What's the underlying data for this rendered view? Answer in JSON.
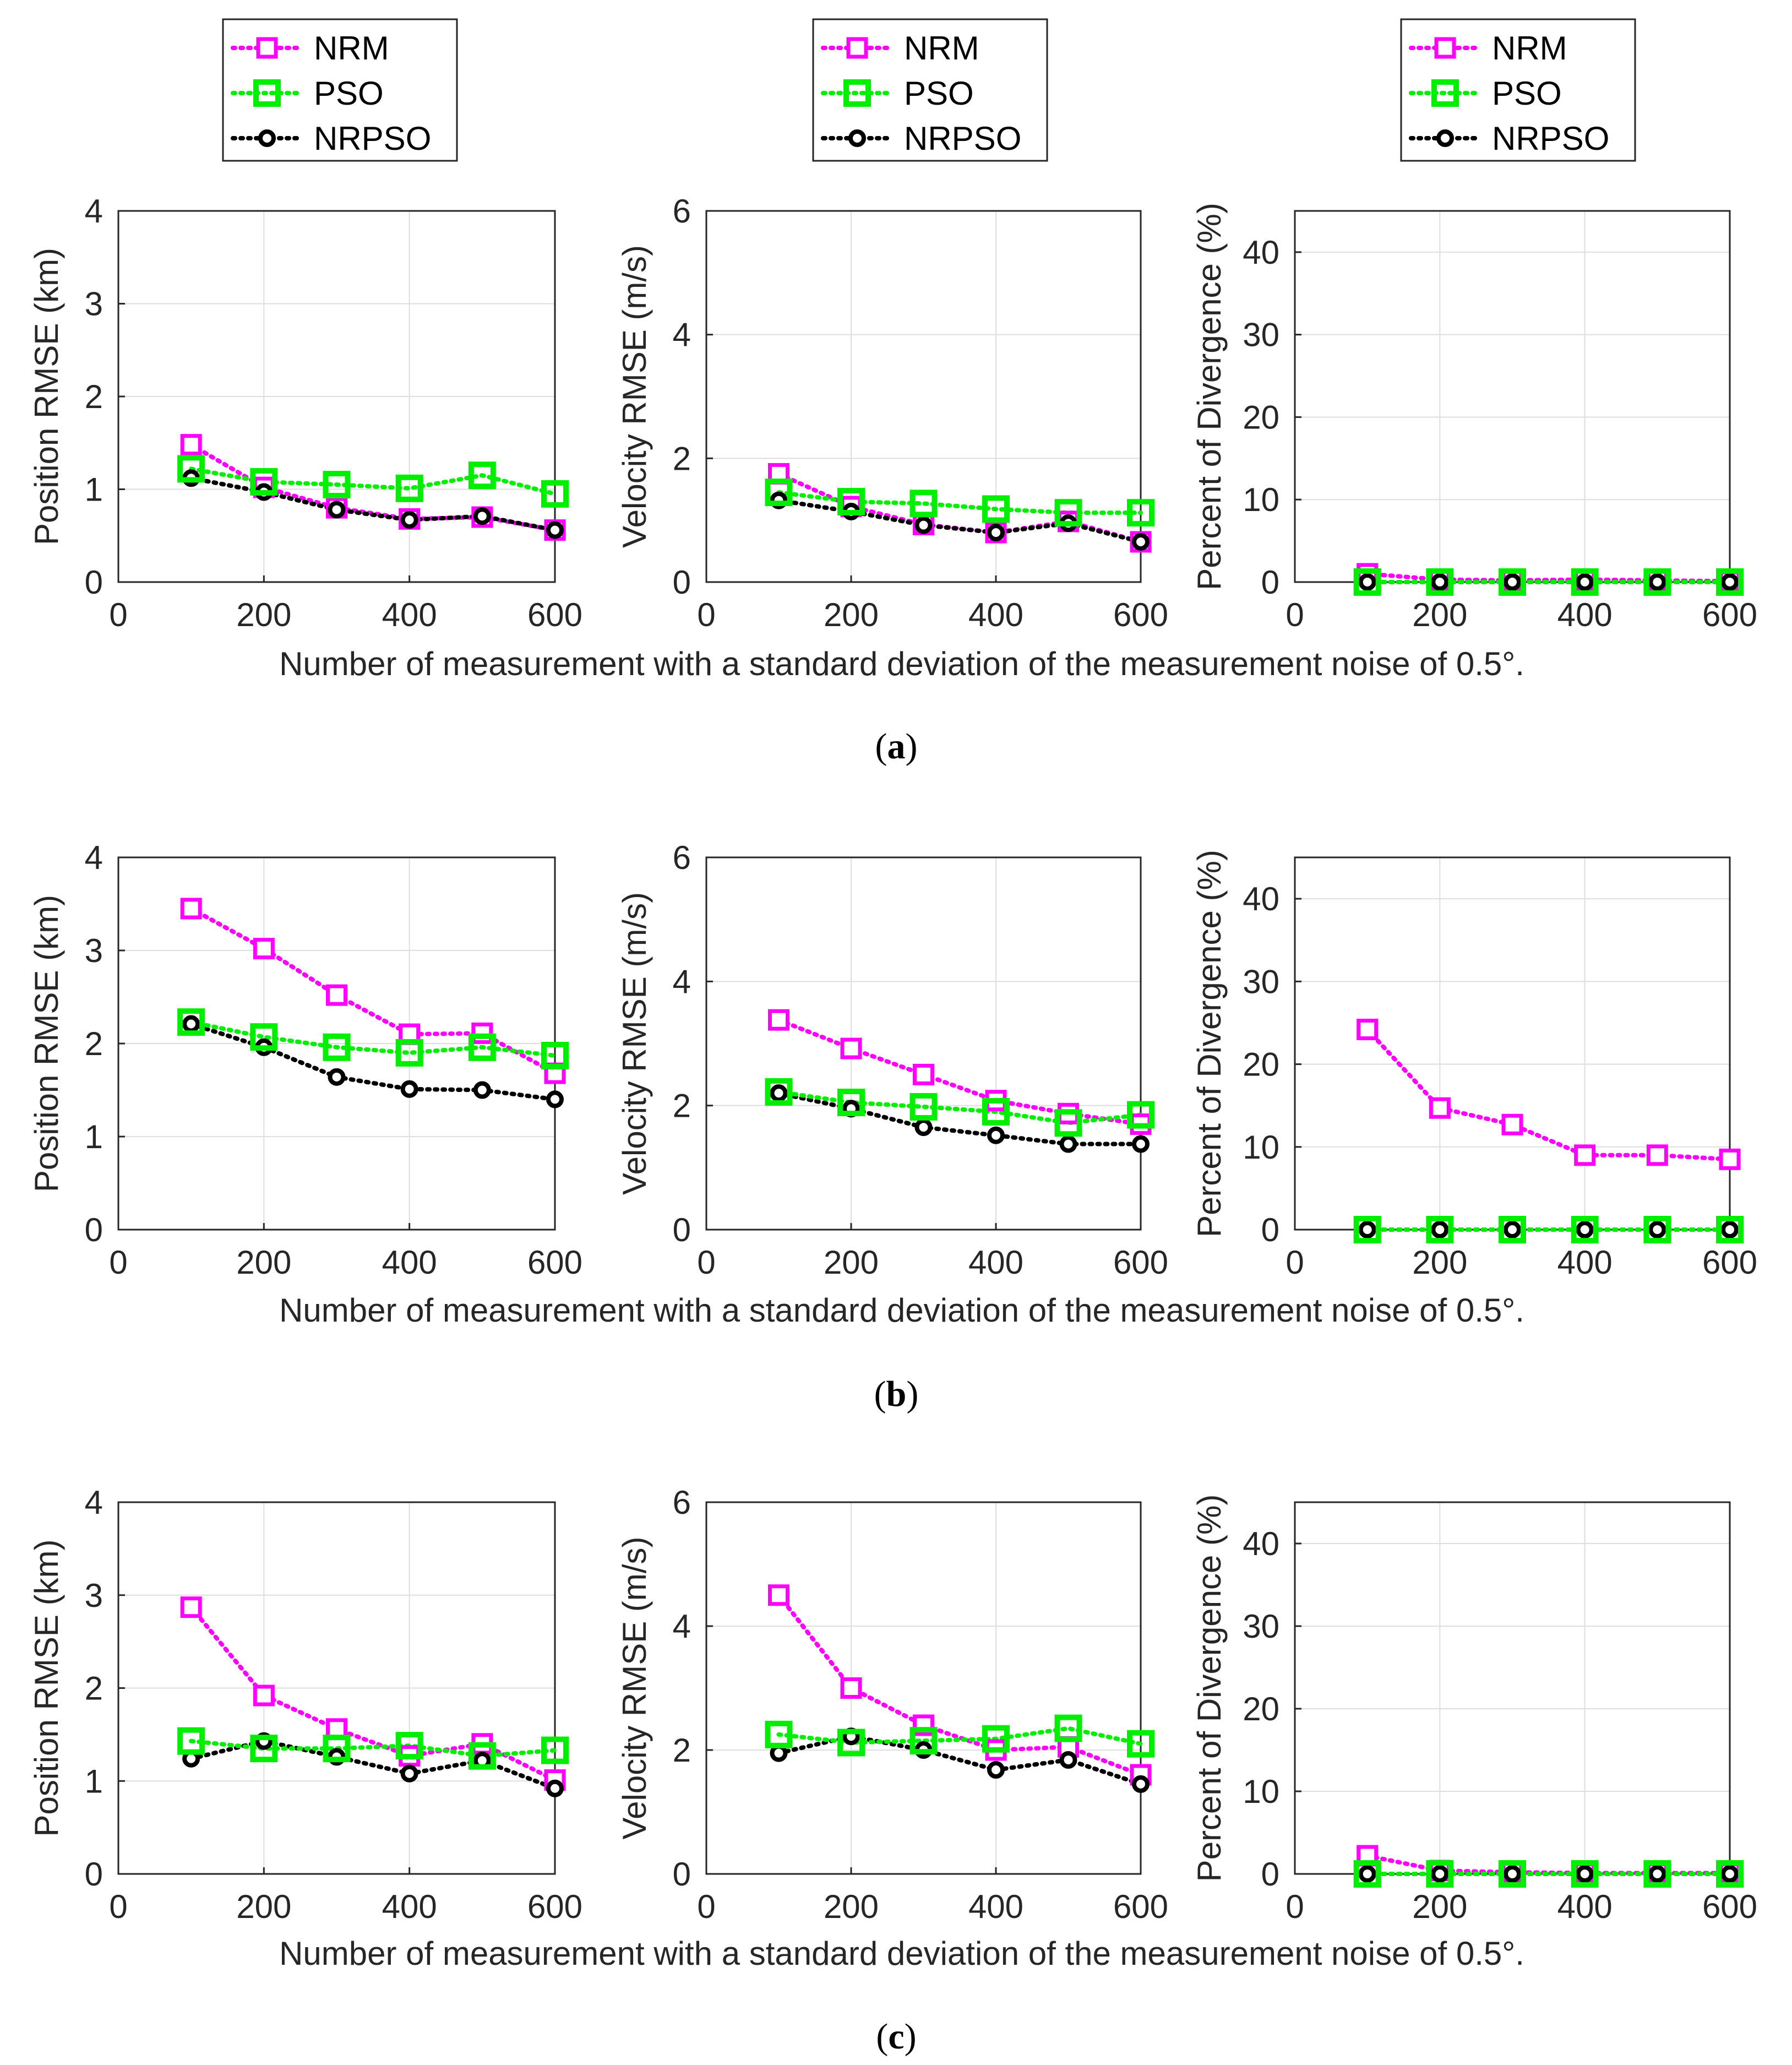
{
  "legend": {
    "entries": [
      {
        "label": "NRM",
        "series": "NRM"
      },
      {
        "label": "PSO",
        "series": "PSO"
      },
      {
        "label": "NRPSO",
        "series": "NRPSO"
      }
    ]
  },
  "colors": {
    "NRM": "#ff00ff",
    "PSO": "#00ee00",
    "NRPSO": "#000000",
    "axis": "#262626",
    "grid": "#dedede"
  },
  "chart_data": [
    {
      "panel": "a",
      "panel_label": "a",
      "type": "line",
      "xlabel": "Number of measurement with a standard deviation of the measurement noise of 0.5°.",
      "charts": [
        {
          "ylabel": "Position RMSE (km)",
          "xlim": [
            0,
            600
          ],
          "ylim": [
            0,
            4
          ],
          "xticks": [
            0,
            200,
            400,
            600
          ],
          "yticks": [
            0,
            1,
            2,
            3,
            4
          ],
          "x": [
            100,
            200,
            300,
            400,
            500,
            600
          ],
          "series": [
            {
              "name": "NRM",
              "values": [
                1.48,
                1.02,
                0.8,
                0.68,
                0.7,
                0.56
              ]
            },
            {
              "name": "PSO",
              "values": [
                1.22,
                1.08,
                1.05,
                1.01,
                1.15,
                0.95
              ]
            },
            {
              "name": "NRPSO",
              "values": [
                1.12,
                0.97,
                0.78,
                0.67,
                0.71,
                0.56
              ]
            }
          ]
        },
        {
          "ylabel": "Velocity RMSE (m/s)",
          "xlim": [
            0,
            600
          ],
          "ylim": [
            0,
            6
          ],
          "xticks": [
            0,
            200,
            400,
            600
          ],
          "yticks": [
            0,
            2,
            4,
            6
          ],
          "x": [
            100,
            200,
            300,
            400,
            500,
            600
          ],
          "series": [
            {
              "name": "NRM",
              "values": [
                1.75,
                1.22,
                0.93,
                0.8,
                0.98,
                0.65
              ]
            },
            {
              "name": "PSO",
              "values": [
                1.45,
                1.3,
                1.27,
                1.18,
                1.12,
                1.12
              ]
            },
            {
              "name": "NRPSO",
              "values": [
                1.32,
                1.14,
                0.92,
                0.8,
                0.95,
                0.65
              ]
            }
          ]
        },
        {
          "ylabel": "Percent of Divergence (%)",
          "xlim": [
            0,
            600
          ],
          "ylim": [
            0,
            45
          ],
          "xticks": [
            0,
            200,
            400,
            600
          ],
          "yticks": [
            0,
            10,
            20,
            30,
            40
          ],
          "x": [
            100,
            200,
            300,
            400,
            500,
            600
          ],
          "series": [
            {
              "name": "NRM",
              "values": [
                1.0,
                0.3,
                0.2,
                0.3,
                0.2,
                0.1
              ]
            },
            {
              "name": "PSO",
              "values": [
                0,
                0,
                0,
                0,
                0,
                0
              ]
            },
            {
              "name": "NRPSO",
              "values": [
                0,
                0,
                0,
                0,
                0,
                0
              ]
            }
          ]
        }
      ]
    },
    {
      "panel": "b",
      "panel_label": "b",
      "type": "line",
      "xlabel": "Number of measurement with a standard deviation of the measurement noise of 0.5°.",
      "charts": [
        {
          "ylabel": "Position RMSE (km)",
          "xlim": [
            0,
            600
          ],
          "ylim": [
            0,
            4
          ],
          "xticks": [
            0,
            200,
            400,
            600
          ],
          "yticks": [
            0,
            1,
            2,
            3,
            4
          ],
          "x": [
            100,
            200,
            300,
            400,
            500,
            600
          ],
          "series": [
            {
              "name": "NRM",
              "values": [
                3.45,
                3.02,
                2.52,
                2.1,
                2.11,
                1.68
              ]
            },
            {
              "name": "PSO",
              "values": [
                2.23,
                2.07,
                1.96,
                1.9,
                1.96,
                1.87
              ]
            },
            {
              "name": "NRPSO",
              "values": [
                2.21,
                1.96,
                1.64,
                1.51,
                1.5,
                1.4
              ]
            }
          ]
        },
        {
          "ylabel": "Velocity RMSE (m/s)",
          "xlim": [
            0,
            600
          ],
          "ylim": [
            0,
            6
          ],
          "xticks": [
            0,
            200,
            400,
            600
          ],
          "yticks": [
            0,
            2,
            4,
            6
          ],
          "x": [
            100,
            200,
            300,
            400,
            500,
            600
          ],
          "series": [
            {
              "name": "NRM",
              "values": [
                3.38,
                2.92,
                2.5,
                2.08,
                1.87,
                1.7
              ]
            },
            {
              "name": "PSO",
              "values": [
                2.22,
                2.05,
                1.98,
                1.9,
                1.72,
                1.85
              ]
            },
            {
              "name": "NRPSO",
              "values": [
                2.2,
                1.95,
                1.65,
                1.52,
                1.38,
                1.38
              ]
            }
          ]
        },
        {
          "ylabel": "Percent of Divergence (%)",
          "xlim": [
            0,
            600
          ],
          "ylim": [
            0,
            45
          ],
          "xticks": [
            0,
            200,
            400,
            600
          ],
          "yticks": [
            0,
            10,
            20,
            30,
            40
          ],
          "x": [
            100,
            200,
            300,
            400,
            500,
            600
          ],
          "series": [
            {
              "name": "NRM",
              "values": [
                24.2,
                14.7,
                12.7,
                9.0,
                9.0,
                8.5
              ]
            },
            {
              "name": "PSO",
              "values": [
                0,
                0,
                0,
                0,
                0,
                0
              ]
            },
            {
              "name": "NRPSO",
              "values": [
                0,
                0,
                0,
                0,
                0,
                0
              ]
            }
          ]
        }
      ]
    },
    {
      "panel": "c",
      "panel_label": "c",
      "type": "line",
      "xlabel": "Number of measurement with a standard deviation of the measurement noise of 0.5°.",
      "charts": [
        {
          "ylabel": "Position RMSE (km)",
          "xlim": [
            0,
            600
          ],
          "ylim": [
            0,
            4
          ],
          "xticks": [
            0,
            200,
            400,
            600
          ],
          "yticks": [
            0,
            1,
            2,
            3,
            4
          ],
          "x": [
            100,
            200,
            300,
            400,
            500,
            600
          ],
          "series": [
            {
              "name": "NRM",
              "values": [
                2.87,
                1.92,
                1.56,
                1.27,
                1.4,
                1.01
              ]
            },
            {
              "name": "PSO",
              "values": [
                1.43,
                1.35,
                1.35,
                1.38,
                1.27,
                1.33
              ]
            },
            {
              "name": "NRPSO",
              "values": [
                1.24,
                1.43,
                1.26,
                1.08,
                1.22,
                0.92
              ]
            }
          ]
        },
        {
          "ylabel": "Velocity RMSE (m/s)",
          "xlim": [
            0,
            600
          ],
          "ylim": [
            0,
            6
          ],
          "xticks": [
            0,
            200,
            400,
            600
          ],
          "yticks": [
            0,
            2,
            4,
            6
          ],
          "x": [
            100,
            200,
            300,
            400,
            500,
            600
          ],
          "series": [
            {
              "name": "NRM",
              "values": [
                4.5,
                3.0,
                2.4,
                2.0,
                2.05,
                1.6
              ]
            },
            {
              "name": "PSO",
              "values": [
                2.25,
                2.12,
                2.15,
                2.18,
                2.35,
                2.1
              ]
            },
            {
              "name": "NRPSO",
              "values": [
                1.95,
                2.22,
                2.0,
                1.68,
                1.84,
                1.45
              ]
            }
          ]
        },
        {
          "ylabel": "Percent of Divergence (%)",
          "xlim": [
            0,
            600
          ],
          "ylim": [
            0,
            45
          ],
          "xticks": [
            0,
            200,
            400,
            600
          ],
          "yticks": [
            0,
            10,
            20,
            30,
            40
          ],
          "x": [
            100,
            200,
            300,
            400,
            500,
            600
          ],
          "series": [
            {
              "name": "NRM",
              "values": [
                2.2,
                0.4,
                0.2,
                0.1,
                0.1,
                0.1
              ]
            },
            {
              "name": "PSO",
              "values": [
                0,
                0,
                0,
                0,
                0,
                0
              ]
            },
            {
              "name": "NRPSO",
              "values": [
                0,
                0,
                0,
                0,
                0,
                0
              ]
            }
          ]
        }
      ]
    }
  ]
}
